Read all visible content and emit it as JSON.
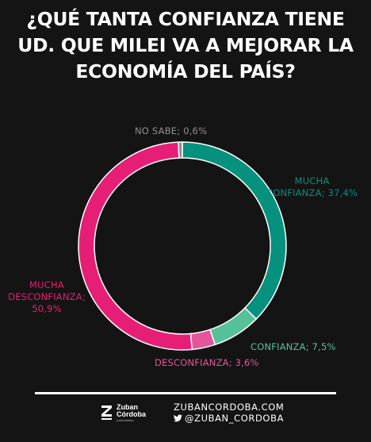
{
  "title": "¿QUÉ TANTA CONFIANZA TIENE UD. QUE MILEI VA A MEJORAR LA ECONOMÍA DEL PAÍS?",
  "colors": {
    "background": "#141414",
    "mucha_confianza": "#05917e",
    "confianza": "#55c199",
    "desconfianza": "#e4559c",
    "mucha_desconfianza": "#e71e76",
    "no_sabe": "#8f8f8f"
  },
  "chart_data": {
    "type": "pie",
    "style": "donut",
    "title": "¿QUÉ TANTA CONFIANZA TIENE UD. QUE MILEI VA A MEJORAR LA ECONOMÍA DEL PAÍS?",
    "slices": [
      {
        "label_line1": "MUCHA",
        "label_line2": "CONFIANZA;",
        "value_text": "37,4%",
        "value": 37.4,
        "color": "#05917e"
      },
      {
        "label_line1": "CONFIANZA;",
        "label_line2": "",
        "value_text": "7,5%",
        "value": 7.5,
        "color": "#55c199"
      },
      {
        "label_line1": "DESCONFIANZA;",
        "label_line2": "",
        "value_text": "3,6%",
        "value": 3.6,
        "color": "#e4559c"
      },
      {
        "label_line1": "MUCHA",
        "label_line2": "DESCONFIANZA;",
        "value_text": "50,9%",
        "value": 50.9,
        "color": "#e71e76"
      },
      {
        "label_line1": "NO SABE;",
        "label_line2": "",
        "value_text": "0,6%",
        "value": 0.6,
        "color": "#8f8f8f"
      }
    ]
  },
  "footer": {
    "brand_line1": "Zuban",
    "brand_line2": "Córdoba",
    "brand_sub": "y Asociados",
    "website": "ZUBANCORDOBA.COM",
    "twitter": "@ZUBAN_CORDOBA",
    "icon": "twitter-bird-icon"
  }
}
